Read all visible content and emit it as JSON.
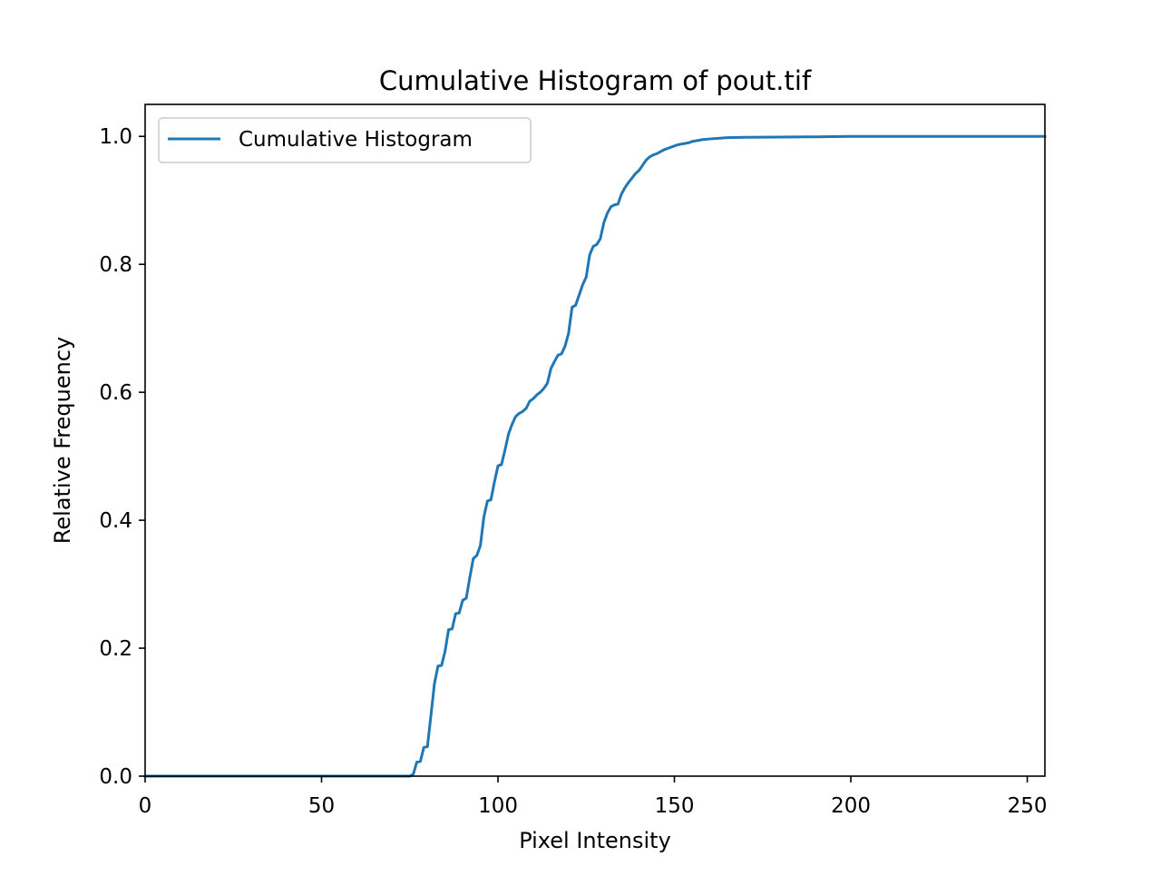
{
  "chart_data": {
    "type": "line",
    "title": "Cumulative Histogram of pout.tif",
    "xlabel": "Pixel Intensity",
    "ylabel": "Relative Frequency",
    "xlim": [
      0,
      255
    ],
    "ylim": [
      0,
      1.05
    ],
    "xticks": [
      0,
      50,
      100,
      150,
      200,
      250
    ],
    "xtick_labels": [
      "0",
      "50",
      "100",
      "150",
      "200",
      "250"
    ],
    "yticks": [
      0.0,
      0.2,
      0.4,
      0.6,
      0.8,
      1.0
    ],
    "ytick_labels": [
      "0.0",
      "0.2",
      "0.4",
      "0.6",
      "0.8",
      "1.0"
    ],
    "grid": false,
    "legend_position": "top-left",
    "series": [
      {
        "name": "Cumulative Histogram",
        "color": "#1f77b4",
        "x": [
          0,
          74,
          75,
          76,
          77,
          78,
          79,
          80,
          81,
          82,
          83,
          84,
          85,
          86,
          87,
          88,
          89,
          90,
          91,
          92,
          93,
          94,
          95,
          96,
          97,
          98,
          99,
          100,
          101,
          102,
          103,
          104,
          105,
          106,
          107,
          108,
          109,
          110,
          111,
          112,
          113,
          114,
          115,
          116,
          117,
          118,
          119,
          120,
          121,
          122,
          123,
          124,
          125,
          126,
          127,
          128,
          129,
          130,
          131,
          132,
          133,
          134,
          135,
          136,
          137,
          138,
          139,
          140,
          141,
          142,
          143,
          144,
          145,
          146,
          147,
          148,
          149,
          150,
          151,
          152,
          153,
          154,
          155,
          156,
          157,
          158,
          160,
          165,
          170,
          180,
          190,
          200,
          210,
          220,
          230,
          240,
          255
        ],
        "y": [
          0,
          0,
          0,
          0.003,
          0.022,
          0.023,
          0.045,
          0.046,
          0.095,
          0.145,
          0.172,
          0.173,
          0.195,
          0.229,
          0.23,
          0.254,
          0.255,
          0.275,
          0.278,
          0.31,
          0.34,
          0.345,
          0.36,
          0.405,
          0.43,
          0.432,
          0.46,
          0.485,
          0.487,
          0.51,
          0.535,
          0.55,
          0.562,
          0.567,
          0.57,
          0.575,
          0.586,
          0.59,
          0.596,
          0.6,
          0.606,
          0.614,
          0.637,
          0.648,
          0.658,
          0.66,
          0.672,
          0.692,
          0.733,
          0.736,
          0.752,
          0.768,
          0.78,
          0.815,
          0.828,
          0.831,
          0.84,
          0.865,
          0.88,
          0.89,
          0.893,
          0.894,
          0.91,
          0.92,
          0.928,
          0.935,
          0.942,
          0.947,
          0.955,
          0.963,
          0.968,
          0.971,
          0.973,
          0.976,
          0.979,
          0.981,
          0.983,
          0.985,
          0.987,
          0.988,
          0.989,
          0.99,
          0.992,
          0.993,
          0.994,
          0.995,
          0.996,
          0.998,
          0.9985,
          0.999,
          0.9993,
          1.0,
          1.0,
          1.0,
          1.0,
          1.0,
          1.0
        ]
      }
    ]
  }
}
